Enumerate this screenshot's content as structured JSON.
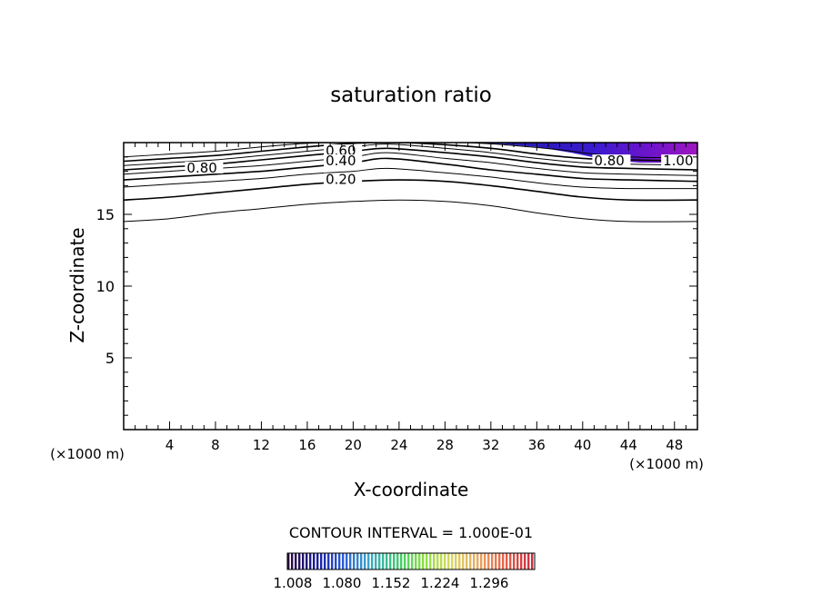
{
  "chart_data": {
    "type": "contour",
    "title": "saturation ratio",
    "xlabel": "X-coordinate",
    "ylabel": "Z-coordinate",
    "x_unit": "(×1000 m)",
    "z_unit": "(×1000 m)",
    "xlim": [
      0,
      50
    ],
    "ylim": [
      0,
      20
    ],
    "x_ticks": [
      4,
      8,
      12,
      16,
      20,
      24,
      28,
      32,
      36,
      40,
      44,
      48
    ],
    "y_ticks": [
      5,
      10,
      15
    ],
    "contour_interval_text": "CONTOUR INTERVAL = 1.000E-01",
    "contour_line_labels": [
      {
        "text": "0.80",
        "x": 5.5,
        "z": 18.1
      },
      {
        "text": "0.60",
        "x": 17.6,
        "z": 19.3
      },
      {
        "text": "0.40",
        "x": 17.6,
        "z": 18.6
      },
      {
        "text": "0.20",
        "x": 17.6,
        "z": 17.3
      },
      {
        "text": "0.80",
        "x": 41.0,
        "z": 18.6
      },
      {
        "text": "1.00",
        "x": 47.0,
        "z": 18.6
      }
    ],
    "contours": [
      {
        "level": 0.1,
        "pts": [
          [
            0,
            14.5
          ],
          [
            4,
            14.7
          ],
          [
            8,
            15.1
          ],
          [
            12,
            15.4
          ],
          [
            16,
            15.7
          ],
          [
            20,
            15.9
          ],
          [
            24,
            16.0
          ],
          [
            28,
            15.9
          ],
          [
            32,
            15.6
          ],
          [
            36,
            15.1
          ],
          [
            40,
            14.7
          ],
          [
            44,
            14.5
          ],
          [
            50,
            14.5
          ]
        ]
      },
      {
        "level": 0.2,
        "pts": [
          [
            0,
            16.0
          ],
          [
            4,
            16.2
          ],
          [
            8,
            16.5
          ],
          [
            12,
            16.8
          ],
          [
            16,
            17.1
          ],
          [
            20,
            17.3
          ],
          [
            24,
            17.4
          ],
          [
            28,
            17.3
          ],
          [
            32,
            17.0
          ],
          [
            36,
            16.6
          ],
          [
            40,
            16.2
          ],
          [
            44,
            16.0
          ],
          [
            50,
            16.0
          ]
        ]
      },
      {
        "level": 0.3,
        "pts": [
          [
            0,
            16.9
          ],
          [
            4,
            17.1
          ],
          [
            8,
            17.3
          ],
          [
            12,
            17.5
          ],
          [
            16,
            17.8
          ],
          [
            20,
            18.0
          ],
          [
            23,
            18.2
          ],
          [
            28,
            17.9
          ],
          [
            32,
            17.6
          ],
          [
            36,
            17.2
          ],
          [
            40,
            16.9
          ],
          [
            44,
            16.8
          ],
          [
            50,
            16.8
          ]
        ]
      },
      {
        "level": 0.4,
        "pts": [
          [
            0,
            17.4
          ],
          [
            4,
            17.6
          ],
          [
            8,
            17.8
          ],
          [
            12,
            18.0
          ],
          [
            16,
            18.3
          ],
          [
            20,
            18.6
          ],
          [
            23,
            18.9
          ],
          [
            28,
            18.5
          ],
          [
            32,
            18.1
          ],
          [
            36,
            17.8
          ],
          [
            40,
            17.5
          ],
          [
            44,
            17.4
          ],
          [
            50,
            17.3
          ]
        ]
      },
      {
        "level": 0.5,
        "pts": [
          [
            0,
            17.8
          ],
          [
            4,
            18.0
          ],
          [
            8,
            18.2
          ],
          [
            12,
            18.4
          ],
          [
            16,
            18.7
          ],
          [
            20,
            19.0
          ],
          [
            23,
            19.3
          ],
          [
            28,
            18.9
          ],
          [
            32,
            18.6
          ],
          [
            36,
            18.2
          ],
          [
            40,
            17.9
          ],
          [
            44,
            17.8
          ],
          [
            50,
            17.7
          ]
        ]
      },
      {
        "level": 0.6,
        "pts": [
          [
            0,
            18.1
          ],
          [
            4,
            18.3
          ],
          [
            8,
            18.5
          ],
          [
            12,
            18.8
          ],
          [
            16,
            19.1
          ],
          [
            20,
            19.4
          ],
          [
            23,
            19.6
          ],
          [
            28,
            19.3
          ],
          [
            32,
            19.0
          ],
          [
            36,
            18.6
          ],
          [
            40,
            18.3
          ],
          [
            44,
            18.2
          ],
          [
            50,
            18.1
          ]
        ]
      },
      {
        "level": 0.7,
        "pts": [
          [
            0,
            18.4
          ],
          [
            4,
            18.6
          ],
          [
            8,
            18.8
          ],
          [
            12,
            19.1
          ],
          [
            16,
            19.4
          ],
          [
            20,
            19.7
          ],
          [
            23,
            19.9
          ],
          [
            28,
            19.6
          ],
          [
            32,
            19.3
          ],
          [
            36,
            18.9
          ],
          [
            40,
            18.6
          ],
          [
            44,
            18.5
          ],
          [
            50,
            18.4
          ]
        ]
      },
      {
        "level": 0.8,
        "pts": [
          [
            0,
            18.7
          ],
          [
            4,
            18.9
          ],
          [
            8,
            19.1
          ],
          [
            12,
            19.4
          ],
          [
            16,
            19.7
          ],
          [
            20,
            19.95
          ],
          [
            23,
            20.0
          ],
          [
            26,
            19.95
          ],
          [
            32,
            19.6
          ],
          [
            36,
            19.2
          ],
          [
            40,
            18.9
          ],
          [
            44,
            18.8
          ],
          [
            50,
            18.7
          ]
        ]
      },
      {
        "level": 0.9,
        "pts": [
          [
            0,
            19.0
          ],
          [
            4,
            19.2
          ],
          [
            8,
            19.4
          ],
          [
            12,
            19.7
          ],
          [
            16,
            19.95
          ],
          [
            19,
            20.0
          ]
        ]
      },
      {
        "level": 0.9,
        "pts": [
          [
            30,
            20.0
          ],
          [
            34,
            19.8
          ],
          [
            38,
            19.5
          ],
          [
            41,
            19.2
          ],
          [
            44,
            19.0
          ],
          [
            50,
            18.9
          ]
        ]
      }
    ],
    "filled_region": {
      "description": "supersaturated region (ratio > 1.0) near top right",
      "pts": [
        [
          30,
          20
        ],
        [
          50,
          20
        ],
        [
          50,
          18.6
        ],
        [
          47,
          18.6
        ],
        [
          45,
          18.6
        ],
        [
          42,
          18.8
        ],
        [
          39,
          19.3
        ],
        [
          36,
          19.7
        ],
        [
          33,
          19.9
        ]
      ],
      "colors": [
        "#1a1aa0",
        "#3a1ad0",
        "#7a14c8",
        "#a018c0"
      ]
    },
    "colorbar": {
      "colors": [
        "#2a0a3a",
        "#1a1a9a",
        "#2a5ad8",
        "#3aa8c8",
        "#3ac870",
        "#8ae040",
        "#d8d860",
        "#e8a860",
        "#e86048",
        "#c83040"
      ],
      "tick_labels": [
        "1.008",
        "1.080",
        "1.152",
        "1.224",
        "1.296"
      ]
    }
  }
}
